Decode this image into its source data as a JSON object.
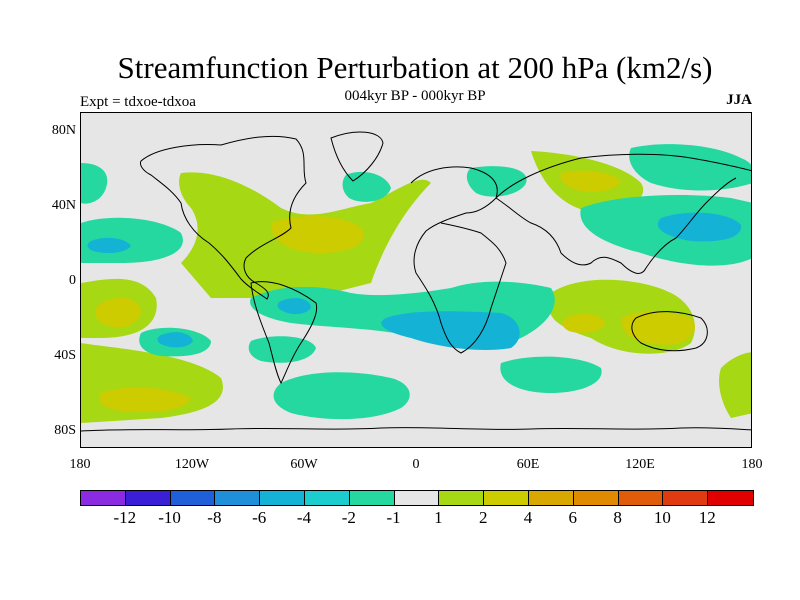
{
  "header": {
    "title": "Streamfunction Perturbation at 200 hPa (km2/s)",
    "subtitle": "004kyr BP - 000kyr BP",
    "experiment": "Expt = tdxoe-tdxoa",
    "season": "JJA"
  },
  "map": {
    "lat_labels": [
      "80N",
      "40N",
      "0",
      "40S",
      "80S"
    ],
    "lon_labels": [
      "180",
      "120W",
      "60W",
      "0",
      "60E",
      "120E",
      "180"
    ]
  },
  "colorbar": {
    "labels": [
      "-12",
      "-10",
      "-8",
      "-6",
      "-4",
      "-2",
      "-1",
      "1",
      "2",
      "4",
      "6",
      "8",
      "10",
      "12"
    ],
    "colors": [
      "#8a2be2",
      "#3a1fd6",
      "#1f5fd9",
      "#1f8fd9",
      "#14b3d6",
      "#1ccdd0",
      "#24d8a0",
      "#e6e6e6",
      "#a6d814",
      "#cccc00",
      "#d9a800",
      "#e08a00",
      "#e05c0a",
      "#e03a10",
      "#e00000"
    ]
  },
  "palette": {
    "neutral": "#e6e6e6",
    "pos1": "#a6d814",
    "pos2": "#cccc00",
    "neg1": "#24d8a0",
    "neg2": "#14b3d6"
  }
}
